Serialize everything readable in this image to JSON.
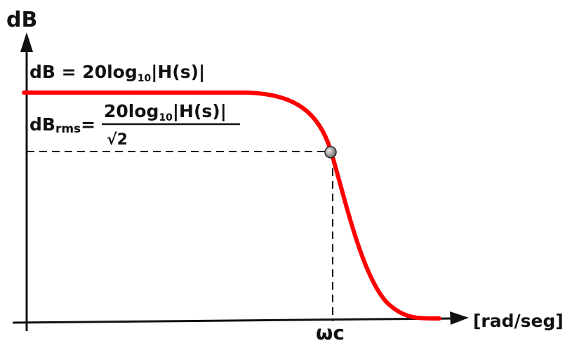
{
  "axis": {
    "y_label": "dB",
    "x_label": "[rad/seg]",
    "cutoff_label": "ωc"
  },
  "formula1": {
    "lhs": "dB = 20log",
    "sub": "10",
    "rhs": "|H(s)|"
  },
  "formula2": {
    "lhs": "dB",
    "lhs_sub": "rms",
    "eq": "=",
    "num_main": "20log",
    "num_sub": "10",
    "num_rest": "|H(s)|",
    "den": "√2"
  },
  "colors": {
    "curve": "#ff0000",
    "axes": "#111111",
    "marker": "#999999"
  }
}
